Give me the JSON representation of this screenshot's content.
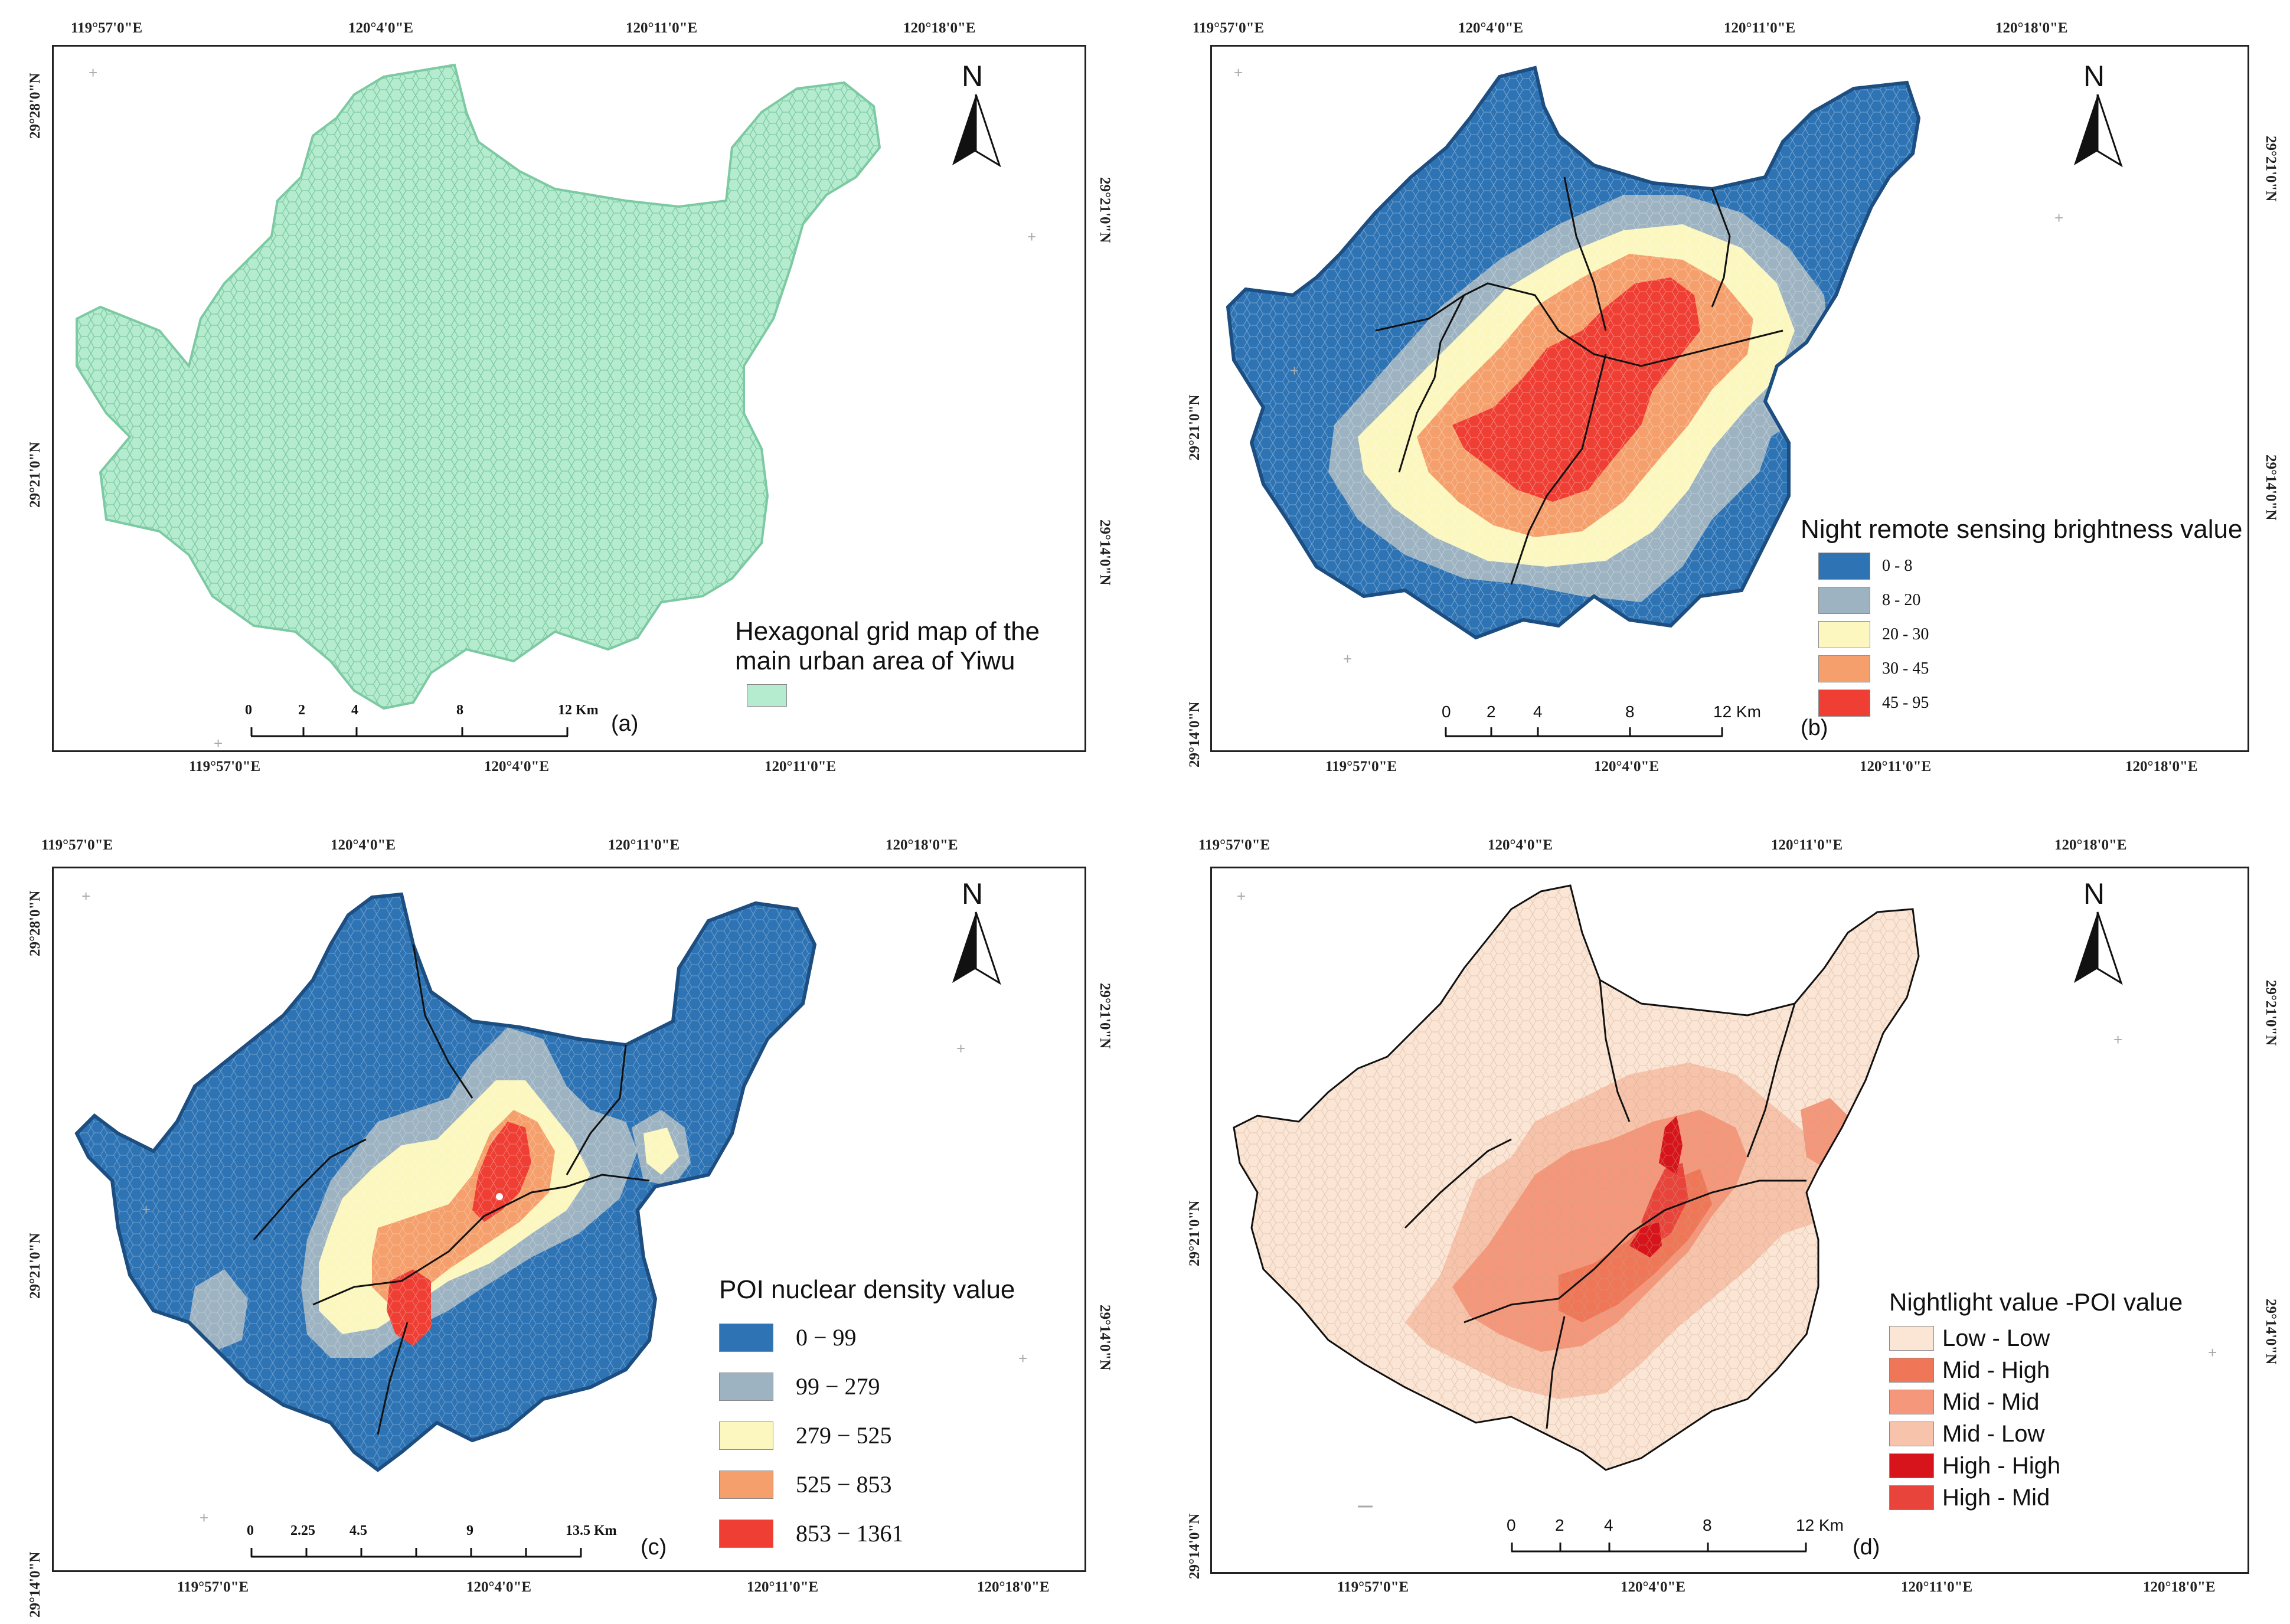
{
  "figure": {
    "colors": {
      "frame": "#222222",
      "boundary": "#111111",
      "hex_green": "#b5ecd0",
      "hex_green_edge": "#7cc9a2"
    },
    "panels": [
      {
        "id": "a",
        "label": "(a)",
        "top_coords": [
          "119°57'0\"E",
          "120°4'0\"E",
          "120°11'0\"E",
          "120°18'0\"E"
        ],
        "bottom_coords": [
          "119°57'0\"E",
          "120°4'0\"E",
          "120°11'0\"E"
        ],
        "left_coords": [
          "29°28'0\"N",
          "29°21'0\"N"
        ],
        "right_coords": [
          "29°21'0\"N",
          "29°14'0\"N"
        ],
        "north": "N",
        "legend_title": [
          "Hexagonal grid map of the",
          "main urban area of Yiwu"
        ],
        "legend_items": [
          {
            "label": "",
            "color": "#b5ecd0"
          }
        ],
        "scale": {
          "ticks": [
            "0",
            "2",
            "4",
            "8",
            "12 Km"
          ]
        }
      },
      {
        "id": "b",
        "label": "(b)",
        "top_coords": [
          "119°57'0\"E",
          "120°4'0\"E",
          "120°11'0\"E",
          "120°18'0\"E"
        ],
        "bottom_coords": [
          "119°57'0\"E",
          "120°4'0\"E",
          "120°11'0\"E",
          "120°18'0\"E"
        ],
        "left_coords": [
          "29°21'0\"N",
          "29°14'0\"N"
        ],
        "right_coords": [
          "29°21'0\"N",
          "29°14'0\"N"
        ],
        "north": "N",
        "legend_title": [
          "Night remote sensing brightness value"
        ],
        "legend_items": [
          {
            "label": "0 - 8",
            "color": "#2e74b5"
          },
          {
            "label": "8 - 20",
            "color": "#9db3c2"
          },
          {
            "label": "20 - 30",
            "color": "#fbf7be"
          },
          {
            "label": "30 - 45",
            "color": "#f5a06c"
          },
          {
            "label": "45 - 95",
            "color": "#ef3e33"
          }
        ],
        "scale": {
          "ticks": [
            "0",
            "2",
            "4",
            "8",
            "12 Km"
          ]
        }
      },
      {
        "id": "c",
        "label": "(c)",
        "top_coords": [
          "119°57'0\"E",
          "120°4'0\"E",
          "120°11'0\"E",
          "120°18'0\"E"
        ],
        "bottom_coords": [
          "119°57'0\"E",
          "120°4'0\"E",
          "120°11'0\"E",
          "120°18'0\"E"
        ],
        "left_coords": [
          "29°28'0\"N",
          "29°21'0\"N",
          "29°14'0\"N"
        ],
        "right_coords": [
          "29°21'0\"N",
          "29°14'0\"N"
        ],
        "north": "N",
        "legend_title": [
          "POI nuclear density value"
        ],
        "legend_items": [
          {
            "label": "0 − 99",
            "color": "#2e74b5"
          },
          {
            "label": "99 − 279",
            "color": "#9db3c2"
          },
          {
            "label": "279 − 525",
            "color": "#fbf7be"
          },
          {
            "label": "525 − 853",
            "color": "#f5a06c"
          },
          {
            "label": "853 − 1361",
            "color": "#ef3e33"
          }
        ],
        "scale": {
          "ticks": [
            "0",
            "2.25",
            "4.5",
            "9",
            "13.5 Km"
          ]
        }
      },
      {
        "id": "d",
        "label": "(d)",
        "top_coords": [
          "119°57'0\"E",
          "120°4'0\"E",
          "120°11'0\"E",
          "120°18'0\"E"
        ],
        "bottom_coords": [
          "119°57'0\"E",
          "120°4'0\"E",
          "120°11'0\"E",
          "120°18'0\"E"
        ],
        "left_coords": [
          "29°21'0\"N",
          "29°14'0\"N"
        ],
        "right_coords": [
          "29°21'0\"N",
          "29°14'0\"N"
        ],
        "north": "N",
        "legend_title": [
          "Nightlight value -POI value"
        ],
        "legend_items": [
          {
            "label": "Low - Low",
            "color": "#fbe5d4"
          },
          {
            "label": "Mid - High",
            "color": "#ef7656"
          },
          {
            "label": "Mid - Mid",
            "color": "#f4977a"
          },
          {
            "label": "Mid - Low",
            "color": "#f7c4ab"
          },
          {
            "label": "High - High",
            "color": "#d7141b"
          },
          {
            "label": "High - Mid",
            "color": "#e8443b"
          }
        ],
        "scale": {
          "ticks": [
            "0",
            "2",
            "4",
            "8",
            "12 Km"
          ]
        }
      }
    ]
  }
}
